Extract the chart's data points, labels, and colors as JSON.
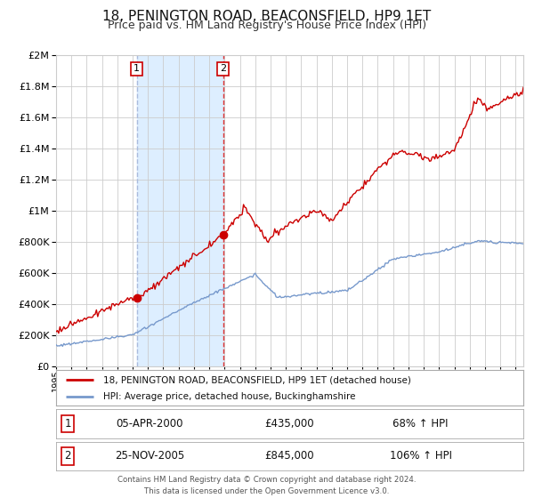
{
  "title": "18, PENINGTON ROAD, BEACONSFIELD, HP9 1ET",
  "subtitle": "Price paid vs. HM Land Registry's House Price Index (HPI)",
  "title_fontsize": 11,
  "subtitle_fontsize": 9,
  "background_color": "#ffffff",
  "plot_bg_color": "#ffffff",
  "grid_color": "#cccccc",
  "red_line_color": "#cc0000",
  "blue_line_color": "#7799cc",
  "vspan_color": "#ddeeff",
  "legend1_label": "18, PENINGTON ROAD, BEACONSFIELD, HP9 1ET (detached house)",
  "legend2_label": "HPI: Average price, detached house, Buckinghamshire",
  "note1_date": "05-APR-2000",
  "note1_price": "£435,000",
  "note1_hpi": "68% ↑ HPI",
  "note2_date": "25-NOV-2005",
  "note2_price": "£845,000",
  "note2_hpi": "106% ↑ HPI",
  "footer": "Contains HM Land Registry data © Crown copyright and database right 2024.\nThis data is licensed under the Open Government Licence v3.0.",
  "ylim": [
    0,
    2000000
  ],
  "yticks": [
    0,
    200000,
    400000,
    600000,
    800000,
    1000000,
    1200000,
    1400000,
    1600000,
    1800000,
    2000000
  ],
  "xlim_start": 1995.0,
  "xlim_end": 2025.5,
  "xtick_years": [
    1995,
    1996,
    1997,
    1998,
    1999,
    2000,
    2001,
    2002,
    2003,
    2004,
    2005,
    2006,
    2007,
    2008,
    2009,
    2010,
    2011,
    2012,
    2013,
    2014,
    2015,
    2016,
    2017,
    2018,
    2019,
    2020,
    2021,
    2022,
    2023,
    2024,
    2025
  ],
  "marker1_t": 2000.27,
  "marker1_v": 435000,
  "marker2_t": 2005.9,
  "marker2_v": 845000,
  "vline1_t": 2000.27,
  "vline2_t": 2005.9
}
